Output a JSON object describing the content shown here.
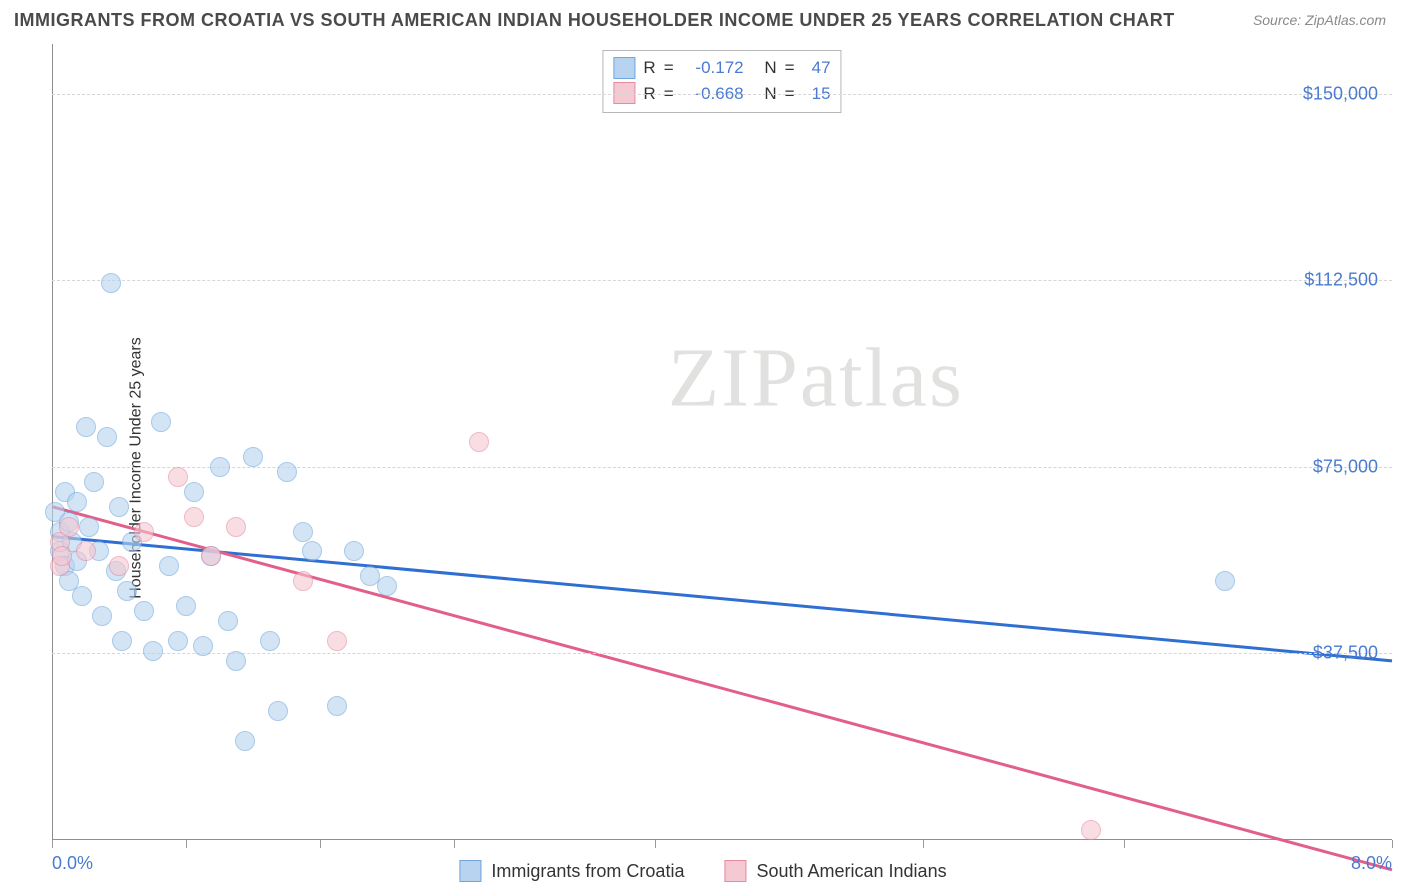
{
  "title": "IMMIGRANTS FROM CROATIA VS SOUTH AMERICAN INDIAN HOUSEHOLDER INCOME UNDER 25 YEARS CORRELATION CHART",
  "source_label": "Source: ZipAtlas.com",
  "ylabel": "Householder Income Under 25 years",
  "watermark": "ZIPatlas",
  "chart": {
    "type": "scatter",
    "background_color": "#ffffff",
    "grid_color": "#d6d6d6",
    "axis_color": "#8e8e8e",
    "xlim": [
      0.0,
      8.0
    ],
    "ylim": [
      0,
      160000
    ],
    "x_ticks": [
      0.0,
      0.8,
      1.6,
      2.4,
      3.6,
      5.2,
      6.4,
      8.0
    ],
    "x_tick_labels": {
      "0": "0.0%",
      "8": "8.0%"
    },
    "y_gridlines": [
      37500,
      75000,
      112500,
      150000
    ],
    "y_tick_labels": {
      "37500": "$37,500",
      "75000": "$75,000",
      "112500": "$112,500",
      "150000": "$150,000"
    },
    "series": [
      {
        "id": "croatia",
        "label": "Immigrants from Croatia",
        "fill": "#b7d3ef",
        "stroke": "#6fa6dd",
        "fill_opacity": 0.6,
        "marker_r": 10,
        "trend": {
          "color": "#2f6fd1",
          "width": 3,
          "y_at_xmin": 61000,
          "y_at_xmax": 36000
        },
        "R": "-0.172",
        "N": "47",
        "points": [
          [
            0.02,
            66000
          ],
          [
            0.05,
            62000
          ],
          [
            0.05,
            58000
          ],
          [
            0.08,
            70000
          ],
          [
            0.08,
            55000
          ],
          [
            0.1,
            64000
          ],
          [
            0.1,
            52000
          ],
          [
            0.12,
            60000
          ],
          [
            0.15,
            68000
          ],
          [
            0.15,
            56000
          ],
          [
            0.18,
            49000
          ],
          [
            0.2,
            83000
          ],
          [
            0.22,
            63000
          ],
          [
            0.25,
            72000
          ],
          [
            0.28,
            58000
          ],
          [
            0.3,
            45000
          ],
          [
            0.33,
            81000
          ],
          [
            0.35,
            112000
          ],
          [
            0.38,
            54000
          ],
          [
            0.4,
            67000
          ],
          [
            0.42,
            40000
          ],
          [
            0.45,
            50000
          ],
          [
            0.48,
            60000
          ],
          [
            0.55,
            46000
          ],
          [
            0.6,
            38000
          ],
          [
            0.65,
            84000
          ],
          [
            0.7,
            55000
          ],
          [
            0.75,
            40000
          ],
          [
            0.8,
            47000
          ],
          [
            0.85,
            70000
          ],
          [
            0.9,
            39000
          ],
          [
            0.95,
            57000
          ],
          [
            1.0,
            75000
          ],
          [
            1.05,
            44000
          ],
          [
            1.1,
            36000
          ],
          [
            1.15,
            20000
          ],
          [
            1.2,
            77000
          ],
          [
            1.3,
            40000
          ],
          [
            1.35,
            26000
          ],
          [
            1.4,
            74000
          ],
          [
            1.5,
            62000
          ],
          [
            1.55,
            58000
          ],
          [
            1.7,
            27000
          ],
          [
            1.8,
            58000
          ],
          [
            1.9,
            53000
          ],
          [
            2.0,
            51000
          ],
          [
            7.0,
            52000
          ]
        ]
      },
      {
        "id": "sai",
        "label": "South American Indians",
        "fill": "#f4c9d2",
        "stroke": "#e88aa2",
        "fill_opacity": 0.6,
        "marker_r": 10,
        "trend": {
          "color": "#e15f88",
          "width": 3,
          "y_at_xmin": 67000,
          "y_at_xmax": -6000
        },
        "R": "-0.668",
        "N": "15",
        "points": [
          [
            0.05,
            60000
          ],
          [
            0.05,
            55000
          ],
          [
            0.06,
            57000
          ],
          [
            0.1,
            63000
          ],
          [
            0.2,
            58000
          ],
          [
            0.4,
            55000
          ],
          [
            0.55,
            62000
          ],
          [
            0.75,
            73000
          ],
          [
            0.85,
            65000
          ],
          [
            0.95,
            57000
          ],
          [
            1.1,
            63000
          ],
          [
            1.5,
            52000
          ],
          [
            1.7,
            40000
          ],
          [
            2.55,
            80000
          ],
          [
            6.2,
            2000
          ]
        ]
      }
    ]
  },
  "legend_top": {
    "r_label": "R",
    "n_label": "N",
    "eq": "="
  }
}
